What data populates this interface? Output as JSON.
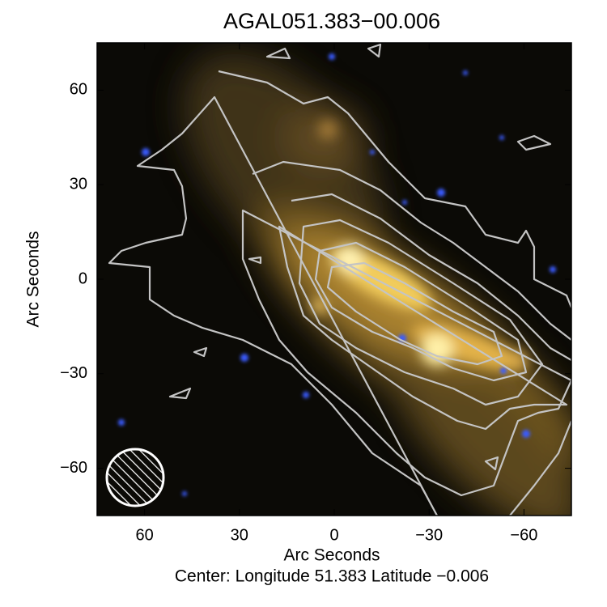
{
  "chart_data": {
    "type": "image",
    "title": "AGAL051.383−00.006",
    "x_label": "Arc Seconds",
    "y_label": "Arc Seconds",
    "caption": "Center:  Longitude 51.383 Latitude −0.006",
    "xlim": [
      75,
      -75
    ],
    "ylim": [
      -75,
      75
    ],
    "xticks": [
      60,
      30,
      0,
      {
        "value": -30,
        "label": "−30"
      },
      {
        "value": -60,
        "label": "−60"
      }
    ],
    "yticks": [
      {
        "value": -60,
        "label": "−60"
      },
      {
        "value": -30,
        "label": "−30"
      },
      0,
      30,
      60
    ]
  }
}
